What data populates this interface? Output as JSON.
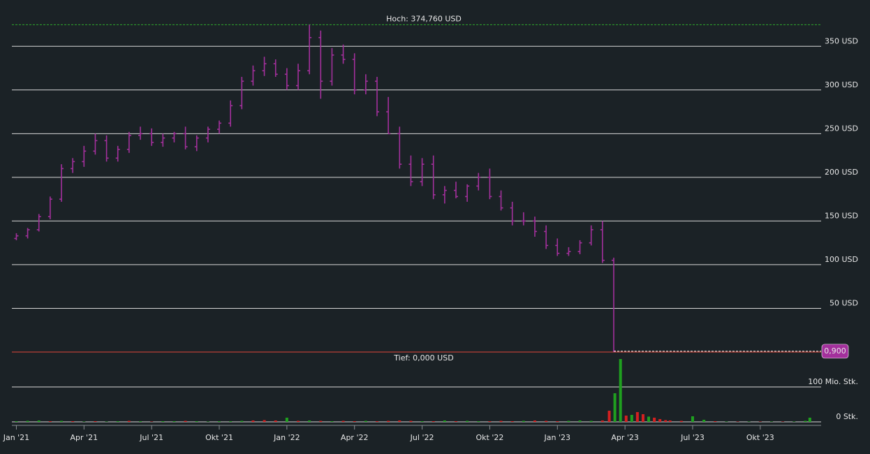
{
  "chart_data": {
    "type": "ohlc",
    "color": "#a3309c",
    "x": [
      0,
      0.5,
      1,
      1.5,
      2,
      2.5,
      3,
      3.5,
      4,
      4.5,
      5,
      5.5,
      6,
      6.5,
      7,
      7.5,
      8,
      8.5,
      9,
      9.5,
      10,
      10.5,
      11,
      11.5,
      12,
      12.5,
      13,
      13.5,
      14,
      14.5,
      15,
      15.5,
      16,
      16.5,
      17,
      17.5,
      18,
      18.5,
      19,
      19.5,
      20,
      20.5,
      21,
      21.5,
      22,
      22.5,
      23,
      23.5,
      24,
      24.5,
      25,
      25.5,
      26,
      26.5
    ],
    "open": [
      130,
      133,
      140,
      155,
      175,
      210,
      218,
      230,
      242,
      222,
      232,
      248,
      250,
      240,
      245,
      250,
      235,
      245,
      255,
      262,
      282,
      310,
      322,
      330,
      318,
      305,
      322,
      360,
      310,
      340,
      335,
      300,
      310,
      275,
      250,
      215,
      195,
      215,
      180,
      185,
      178,
      190,
      200,
      178,
      165,
      150,
      150,
      138,
      122,
      113,
      115,
      125,
      140,
      105
    ],
    "high": [
      136,
      142,
      158,
      178,
      215,
      222,
      236,
      250,
      248,
      236,
      252,
      258,
      256,
      250,
      252,
      258,
      248,
      258,
      265,
      288,
      315,
      328,
      338,
      335,
      325,
      330,
      374.76,
      368,
      348,
      352,
      342,
      318,
      315,
      292,
      258,
      225,
      222,
      225,
      190,
      195,
      192,
      205,
      210,
      185,
      172,
      160,
      155,
      145,
      130,
      120,
      128,
      145,
      150,
      108
    ],
    "low": [
      128,
      130,
      138,
      152,
      172,
      205,
      212,
      226,
      218,
      218,
      228,
      243,
      236,
      235,
      240,
      232,
      230,
      240,
      250,
      258,
      278,
      305,
      316,
      315,
      300,
      300,
      318,
      290,
      305,
      330,
      295,
      295,
      270,
      250,
      210,
      190,
      190,
      175,
      170,
      176,
      172,
      185,
      175,
      162,
      145,
      145,
      132,
      118,
      110,
      110,
      112,
      122,
      102,
      0
    ],
    "close": [
      133,
      140,
      155,
      175,
      210,
      218,
      230,
      242,
      222,
      232,
      248,
      250,
      240,
      245,
      250,
      235,
      245,
      255,
      262,
      282,
      310,
      322,
      330,
      318,
      305,
      322,
      360,
      310,
      340,
      335,
      300,
      310,
      275,
      250,
      215,
      195,
      215,
      180,
      185,
      178,
      190,
      200,
      178,
      165,
      150,
      150,
      138,
      122,
      113,
      115,
      125,
      140,
      105,
      1
    ],
    "xlim": [
      -0.2,
      35.7
    ],
    "xticks": [
      {
        "value": 0,
        "label": "Jan '21"
      },
      {
        "value": 3,
        "label": "Apr '21"
      },
      {
        "value": 6,
        "label": "Jul '21"
      },
      {
        "value": 9,
        "label": "Okt '21"
      },
      {
        "value": 12,
        "label": "Jan '22"
      },
      {
        "value": 15,
        "label": "Apr '22"
      },
      {
        "value": 18,
        "label": "Jul '22"
      },
      {
        "value": 21,
        "label": "Okt '22"
      },
      {
        "value": 24,
        "label": "Jan '23"
      },
      {
        "value": 27,
        "label": "Apr '23"
      },
      {
        "value": 30,
        "label": "Jul '23"
      },
      {
        "value": 33,
        "label": "Okt '23"
      }
    ],
    "ylim": [
      0,
      395
    ],
    "yticks": [
      {
        "value": 50,
        "label": "50 USD"
      },
      {
        "value": 100,
        "label": "100 USD"
      },
      {
        "value": 150,
        "label": "150 USD"
      },
      {
        "value": 200,
        "label": "200 USD"
      },
      {
        "value": 250,
        "label": "250 USD"
      },
      {
        "value": 300,
        "label": "300 USD"
      },
      {
        "value": 350,
        "label": "350 USD"
      }
    ],
    "high_line": {
      "value": 374.76,
      "label": "Hoch: 374,760 USD",
      "color": "#2ea82e"
    },
    "low_line": {
      "value": 0,
      "label": "Tief: 0,000 USD",
      "color": "#e0473a"
    },
    "last": {
      "value": 0.9,
      "label": "0,900",
      "color": "#a3309c"
    },
    "volume": {
      "x": [
        0,
        0.5,
        1,
        1.5,
        2,
        2.5,
        3,
        3.5,
        4,
        4.5,
        5,
        5.5,
        6,
        6.5,
        7,
        7.5,
        8,
        8.5,
        9,
        9.5,
        10,
        10.5,
        11,
        11.5,
        12,
        12.5,
        13,
        13.5,
        14,
        14.5,
        15,
        15.5,
        16,
        16.5,
        17,
        17.5,
        18,
        18.5,
        19,
        19.5,
        20,
        20.5,
        21,
        21.5,
        22,
        22.5,
        23,
        23.5,
        24,
        24.5,
        25,
        25.5,
        26,
        26.3,
        26.55,
        26.8,
        27.05,
        27.3,
        27.55,
        27.8,
        28.05,
        28.3,
        28.55,
        28.8,
        29,
        29.5,
        30,
        30.5,
        31,
        31.5,
        32,
        32.5,
        33,
        33.5,
        34,
        34.5,
        35,
        35.2
      ],
      "values": [
        2,
        3,
        4,
        2,
        3,
        2,
        1,
        2,
        1,
        2,
        3,
        2,
        1,
        2,
        2,
        3,
        2,
        1,
        2,
        2,
        3,
        4,
        5,
        4,
        12,
        3,
        4,
        3,
        2,
        3,
        2,
        3,
        2,
        3,
        4,
        3,
        2,
        2,
        4,
        2,
        3,
        2,
        2,
        3,
        2,
        3,
        4,
        3,
        2,
        3,
        4,
        3,
        4,
        32,
        82,
        180,
        18,
        20,
        28,
        22,
        15,
        12,
        8,
        5,
        4,
        3,
        16,
        6,
        2,
        1,
        1,
        1,
        1,
        1,
        1,
        1,
        3,
        12
      ],
      "colors": [
        "#1fa01f",
        "#1fa01f",
        "#1fa01f",
        "#d42020",
        "#1fa01f",
        "#d42020",
        "#1fa01f",
        "#d42020",
        "#1fa01f",
        "#1fa01f",
        "#d42020",
        "#1fa01f",
        "#d42020",
        "#1fa01f",
        "#1fa01f",
        "#d42020",
        "#1fa01f",
        "#1fa01f",
        "#1fa01f",
        "#1fa01f",
        "#1fa01f",
        "#d42020",
        "#d42020",
        "#d42020",
        "#1fa01f",
        "#d42020",
        "#1fa01f",
        "#d42020",
        "#1fa01f",
        "#d42020",
        "#d42020",
        "#1fa01f",
        "#d42020",
        "#d42020",
        "#d42020",
        "#d42020",
        "#1fa01f",
        "#d42020",
        "#1fa01f",
        "#d42020",
        "#1fa01f",
        "#1fa01f",
        "#d42020",
        "#d42020",
        "#d42020",
        "#1fa01f",
        "#d42020",
        "#d42020",
        "#d42020",
        "#1fa01f",
        "#1fa01f",
        "#1fa01f",
        "#d42020",
        "#d42020",
        "#1fa01f",
        "#1fa01f",
        "#d42020",
        "#1fa01f",
        "#d42020",
        "#d42020",
        "#1fa01f",
        "#d42020",
        "#d42020",
        "#d42020",
        "#d42020",
        "#d42020",
        "#1fa01f",
        "#1fa01f",
        "#d42020",
        "#1fa01f",
        "#d42020",
        "#1fa01f",
        "#d42020",
        "#1fa01f",
        "#d42020",
        "#1fa01f",
        "#1fa01f",
        "#1fa01f"
      ],
      "ylim": [
        0,
        188
      ],
      "yticks": [
        {
          "value": 0,
          "label": "0 Stk."
        },
        {
          "value": 100,
          "label": "100 Mio. Stk."
        }
      ]
    }
  }
}
